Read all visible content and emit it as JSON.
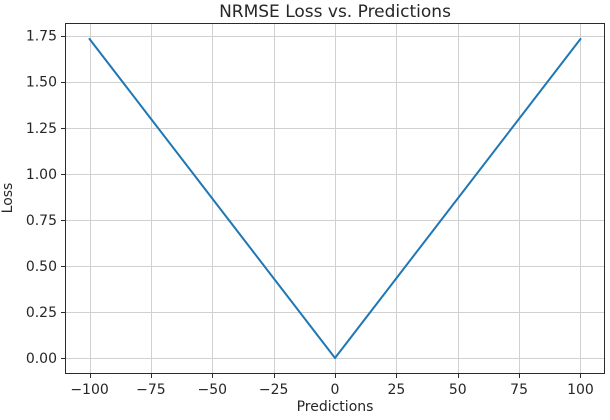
{
  "chart_data": {
    "type": "line",
    "title": "NRMSE Loss vs. Predictions",
    "xlabel": "Predictions",
    "ylabel": "Loss",
    "grid": true,
    "legend": "none",
    "xlim": [
      -110,
      110
    ],
    "ylim": [
      -0.0866,
      1.8186
    ],
    "x_ticks": [
      {
        "v": -100,
        "label": "−100"
      },
      {
        "v": -75,
        "label": "−75"
      },
      {
        "v": -50,
        "label": "−50"
      },
      {
        "v": -25,
        "label": "−25"
      },
      {
        "v": 0,
        "label": "0"
      },
      {
        "v": 25,
        "label": "25"
      },
      {
        "v": 50,
        "label": "50"
      },
      {
        "v": 75,
        "label": "75"
      },
      {
        "v": 100,
        "label": "100"
      }
    ],
    "y_ticks": [
      {
        "v": 0.0,
        "label": "0.00"
      },
      {
        "v": 0.25,
        "label": "0.25"
      },
      {
        "v": 0.5,
        "label": "0.50"
      },
      {
        "v": 0.75,
        "label": "0.75"
      },
      {
        "v": 1.0,
        "label": "1.00"
      },
      {
        "v": 1.25,
        "label": "1.25"
      },
      {
        "v": 1.5,
        "label": "1.50"
      },
      {
        "v": 1.75,
        "label": "1.75"
      }
    ],
    "series": [
      {
        "name": "NRMSE loss",
        "color": "#1f77b4",
        "line_width": 2,
        "x": [
          -100,
          -75,
          -50,
          -25,
          0,
          25,
          50,
          75,
          100
        ],
        "y": [
          1.732,
          1.299,
          0.866,
          0.433,
          0.0,
          0.433,
          0.866,
          1.299,
          1.732
        ]
      }
    ],
    "colors": {
      "grid": "#d0d0d0",
      "spine": "#2b2b2b",
      "tick_text": "#262626",
      "background": "#ffffff"
    },
    "tick_font_size": 14
  }
}
